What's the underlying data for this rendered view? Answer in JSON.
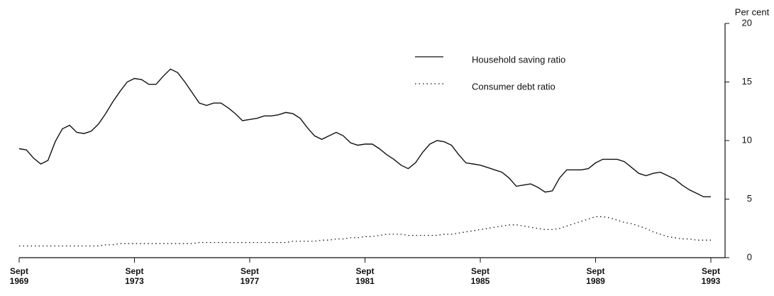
{
  "chart_data": {
    "type": "line",
    "ylabel": "Per cent",
    "legend": "upper center",
    "x": [
      1969.75,
      1970,
      1970.25,
      1970.5,
      1970.75,
      1971,
      1971.25,
      1971.5,
      1971.75,
      1972,
      1972.25,
      1972.5,
      1972.75,
      1973,
      1973.25,
      1973.5,
      1973.75,
      1974,
      1974.25,
      1974.5,
      1974.75,
      1975,
      1975.25,
      1975.5,
      1975.75,
      1976,
      1976.25,
      1976.5,
      1976.75,
      1977,
      1977.25,
      1977.5,
      1977.75,
      1978,
      1978.25,
      1978.5,
      1978.75,
      1979,
      1979.25,
      1979.5,
      1979.75,
      1980,
      1980.25,
      1980.5,
      1980.75,
      1981,
      1981.25,
      1981.5,
      1981.75,
      1982,
      1982.25,
      1982.5,
      1982.75,
      1983,
      1983.25,
      1983.5,
      1983.75,
      1984,
      1984.25,
      1984.5,
      1984.75,
      1985,
      1985.25,
      1985.5,
      1985.75,
      1986,
      1986.25,
      1986.5,
      1986.75,
      1987,
      1987.25,
      1987.5,
      1987.75,
      1988,
      1988.25,
      1988.5,
      1988.75,
      1989,
      1989.25,
      1989.5,
      1989.75,
      1990,
      1990.25,
      1990.5,
      1990.75,
      1991,
      1991.25,
      1991.5,
      1991.75,
      1992,
      1992.25,
      1992.5,
      1992.75,
      1993,
      1993.25,
      1993.5,
      1993.75
    ],
    "series": [
      {
        "name": "Household saving ratio",
        "color": "#111111",
        "style": "solid",
        "values": [
          9.3,
          9.2,
          8.5,
          8.0,
          8.3,
          9.9,
          11.0,
          11.3,
          10.7,
          10.6,
          10.8,
          11.4,
          12.3,
          13.3,
          14.2,
          15.0,
          15.3,
          15.2,
          14.8,
          14.8,
          15.5,
          16.1,
          15.8,
          15.0,
          14.1,
          13.2,
          13.0,
          13.2,
          13.2,
          12.8,
          12.3,
          11.7,
          11.8,
          11.9,
          12.1,
          12.1,
          12.2,
          12.4,
          12.3,
          11.9,
          11.1,
          10.4,
          10.1,
          10.4,
          10.7,
          10.4,
          9.8,
          9.6,
          9.7,
          9.7,
          9.3,
          8.8,
          8.4,
          7.9,
          7.6,
          8.1,
          9.0,
          9.7,
          10.0,
          9.9,
          9.6,
          8.8,
          8.1,
          8.0,
          7.9,
          7.7,
          7.5,
          7.3,
          6.8,
          6.1,
          6.2,
          6.3,
          6.0,
          5.6,
          5.7,
          6.8,
          7.5,
          7.5,
          7.5,
          7.6,
          8.1,
          8.4,
          8.4,
          8.4,
          8.2,
          7.7,
          7.2,
          7.0,
          7.2,
          7.3,
          7.0,
          6.7,
          6.2,
          5.8,
          5.5,
          5.2,
          5.2
        ]
      },
      {
        "name": "Consumer debt ratio",
        "color": "#111111",
        "style": "dotted",
        "values": [
          1.0,
          1.0,
          1.0,
          1.0,
          1.0,
          1.0,
          1.0,
          1.0,
          1.0,
          1.0,
          1.0,
          1.0,
          1.1,
          1.1,
          1.2,
          1.2,
          1.2,
          1.2,
          1.2,
          1.2,
          1.2,
          1.2,
          1.2,
          1.2,
          1.2,
          1.3,
          1.3,
          1.3,
          1.3,
          1.3,
          1.3,
          1.3,
          1.3,
          1.3,
          1.3,
          1.3,
          1.3,
          1.3,
          1.4,
          1.4,
          1.4,
          1.4,
          1.5,
          1.5,
          1.6,
          1.6,
          1.7,
          1.7,
          1.8,
          1.8,
          1.9,
          2.0,
          2.0,
          2.0,
          1.9,
          1.9,
          1.9,
          1.9,
          1.9,
          2.0,
          2.0,
          2.1,
          2.2,
          2.3,
          2.4,
          2.5,
          2.6,
          2.7,
          2.8,
          2.8,
          2.7,
          2.6,
          2.5,
          2.4,
          2.4,
          2.5,
          2.7,
          2.9,
          3.1,
          3.3,
          3.5,
          3.5,
          3.4,
          3.2,
          3.0,
          2.9,
          2.7,
          2.5,
          2.2,
          2.0,
          1.8,
          1.7,
          1.6,
          1.6,
          1.5,
          1.5,
          1.5
        ]
      }
    ],
    "xlim": [
      1969.75,
      1993.75
    ],
    "xticks": [
      {
        "value": 1969.75,
        "label": [
          "Sept",
          "1969"
        ]
      },
      {
        "value": 1973.75,
        "label": [
          "Sept",
          "1973"
        ]
      },
      {
        "value": 1977.75,
        "label": [
          "Sept",
          "1977"
        ]
      },
      {
        "value": 1981.75,
        "label": [
          "Sept",
          "1981"
        ]
      },
      {
        "value": 1985.75,
        "label": [
          "Sept",
          "1985"
        ]
      },
      {
        "value": 1989.75,
        "label": [
          "Sept",
          "1989"
        ]
      },
      {
        "value": 1993.75,
        "label": [
          "Sept",
          "1993"
        ]
      }
    ],
    "ylim": [
      0,
      20
    ],
    "yticks": [
      0,
      5,
      10,
      15,
      20
    ],
    "yaxis_side": "right"
  }
}
